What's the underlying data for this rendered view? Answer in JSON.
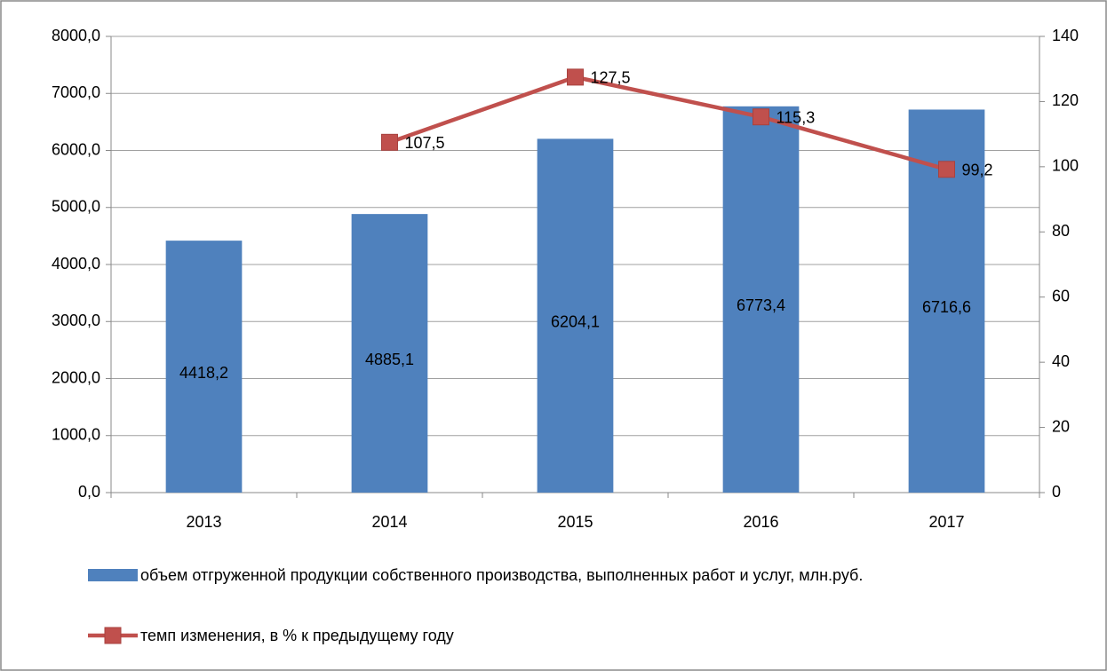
{
  "chart_data": {
    "type": "bar-line",
    "categories": [
      "2013",
      "2014",
      "2015",
      "2016",
      "2017"
    ],
    "series": [
      {
        "name": "объем отгруженной продукции собственного производства, выполненных работ и услуг, млн.руб.",
        "type": "bar",
        "color": "#4f81bd",
        "values": [
          4418.2,
          4885.1,
          6204.1,
          6773.4,
          6716.6
        ],
        "value_labels": [
          "4418,2",
          "4885,1",
          "6204,1",
          "6773,4",
          "6716,6"
        ]
      },
      {
        "name": "темп изменения, в % к предыдущему году",
        "type": "line",
        "axis": "y2",
        "color": "#c0504d",
        "values": [
          null,
          107.5,
          127.5,
          115.3,
          99.2
        ],
        "value_labels": [
          null,
          "107,5",
          "127,5",
          "115,3",
          "99,2"
        ]
      }
    ],
    "ylim": [
      0,
      8000
    ],
    "yticks": [
      {
        "value": 0,
        "label": "0,0"
      },
      {
        "value": 1000,
        "label": "1000,0"
      },
      {
        "value": 2000,
        "label": "2000,0"
      },
      {
        "value": 3000,
        "label": "3000,0"
      },
      {
        "value": 4000,
        "label": "4000,0"
      },
      {
        "value": 5000,
        "label": "5000,0"
      },
      {
        "value": 6000,
        "label": "6000,0"
      },
      {
        "value": 7000,
        "label": "7000,0"
      },
      {
        "value": 8000,
        "label": "8000,0"
      }
    ],
    "y2lim": [
      0,
      140
    ],
    "y2ticks": [
      0,
      20,
      40,
      60,
      80,
      100,
      120,
      140
    ],
    "grid": true
  }
}
